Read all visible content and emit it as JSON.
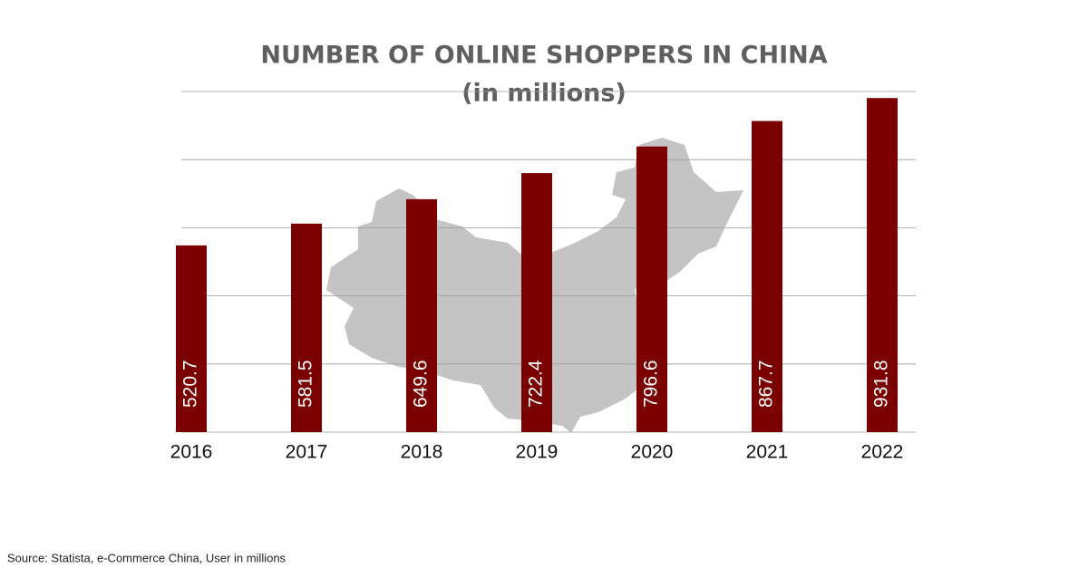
{
  "chart_data": {
    "type": "bar",
    "title": "NUMBER OF ONLINE SHOPPERS IN CHINA",
    "subtitle": "(in millions)",
    "categories": [
      "2016",
      "2017",
      "2018",
      "2019",
      "2020",
      "2021",
      "2022"
    ],
    "values": [
      520.7,
      581.5,
      649.6,
      722.4,
      796.6,
      867.7,
      931.8
    ],
    "color": "#7b0000",
    "ylim": [
      0,
      950
    ],
    "yticks": [
      0,
      190,
      380,
      570,
      760,
      950
    ],
    "grid": true,
    "show_y_tick_labels": false,
    "source": "Source: Statista, e-Commerce China, User in millions"
  }
}
